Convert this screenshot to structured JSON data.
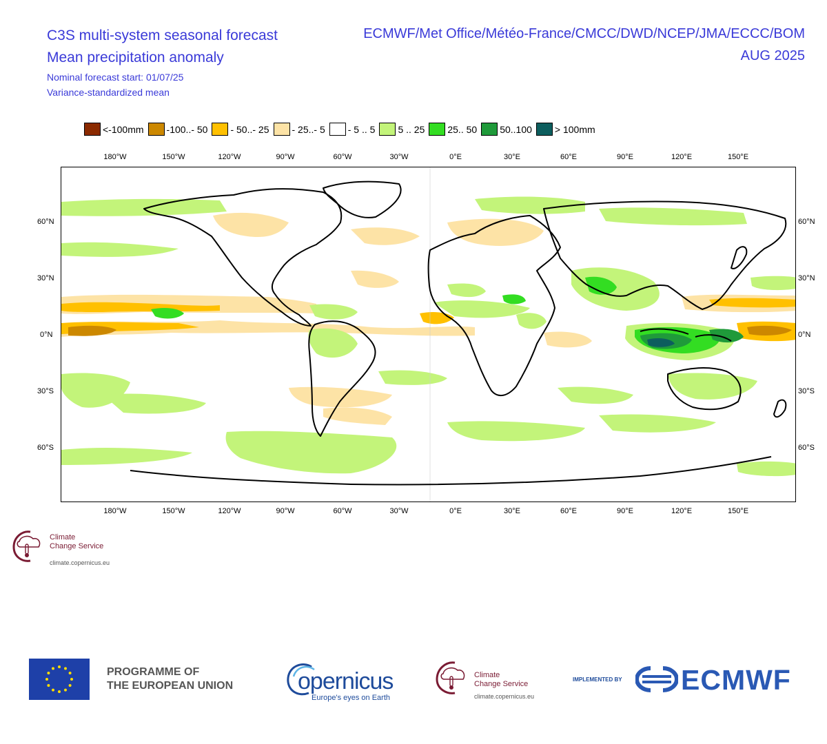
{
  "header": {
    "title_line1": "C3S multi-system seasonal forecast",
    "title_line2": "Mean precipitation anomaly",
    "subtitle_line1": "Nominal forecast start: 01/07/25",
    "subtitle_line2": "Variance-standardized mean",
    "centres": "ECMWF/Met Office/Météo-France/CMCC/DWD/NCEP/JMA/ECCC/BOM",
    "valid_month": "AUG 2025"
  },
  "legend": [
    {
      "label": "<-100mm",
      "color": "#8b2a00"
    },
    {
      "label": "-100..- 50",
      "color": "#cc8800"
    },
    {
      "label": "- 50..- 25",
      "color": "#ffc000"
    },
    {
      "label": "- 25..- 5",
      "color": "#fde3a6"
    },
    {
      "label": "- 5 .. 5",
      "color": "#ffffff"
    },
    {
      "label": "5 .. 25",
      "color": "#c3f47a"
    },
    {
      "label": "25.. 50",
      "color": "#33dd22"
    },
    {
      "label": "50..100",
      "color": "#1f9a3a"
    },
    {
      "label": "> 100mm",
      "color": "#0d5e5e"
    }
  ],
  "axes": {
    "lon_labels": [
      "180°W",
      "150°W",
      "120°W",
      "90°W",
      "60°W",
      "30°W",
      "0°E",
      "30°E",
      "60°E",
      "90°E",
      "120°E",
      "150°E"
    ],
    "lat_labels": [
      "60°N",
      "30°N",
      "0°N",
      "30°S",
      "60°S"
    ]
  },
  "logos": {
    "c3s_line1": "Climate",
    "c3s_line2": "Change Service",
    "c3s_url": "climate.copernicus.eu",
    "eu_line1": "PROGRAMME OF",
    "eu_line2": "THE EUROPEAN UNION",
    "copernicus": "opernicus",
    "copernicus_tagline": "Europe's eyes on Earth",
    "implemented_by": "IMPLEMENTED BY",
    "ecmwf": "ECMWF"
  }
}
